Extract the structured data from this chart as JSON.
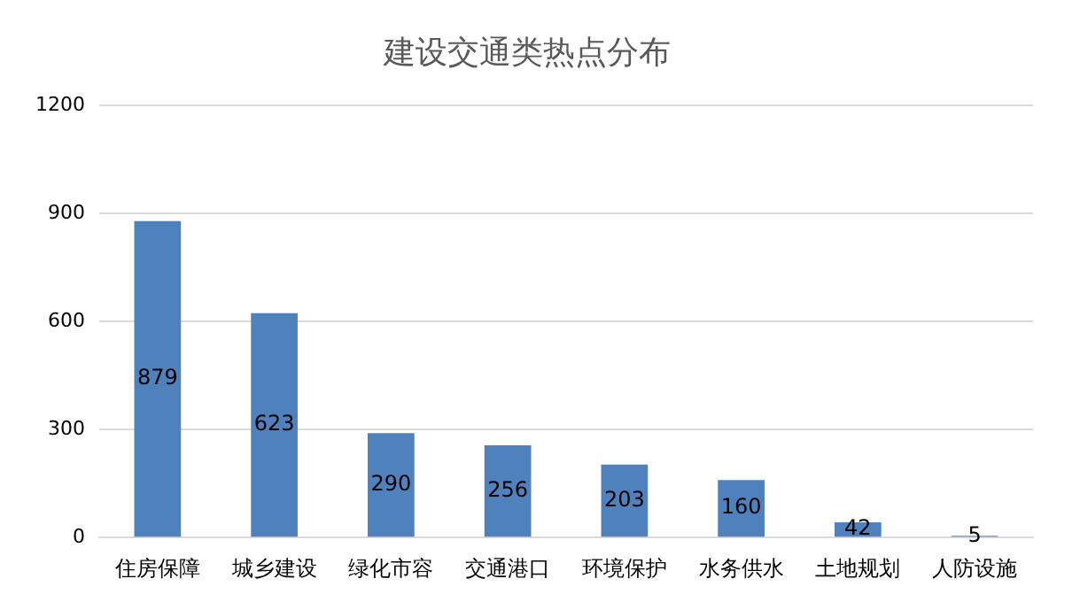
{
  "chart_data": {
    "type": "bar",
    "title": "建设交通类热点分布",
    "categories": [
      "住房保障",
      "城乡建设",
      "绿化市容",
      "交通港口",
      "环境保护",
      "水务供水",
      "土地规划",
      "人防设施"
    ],
    "values": [
      879,
      623,
      290,
      256,
      203,
      160,
      42,
      5
    ],
    "color": "#4f81bd",
    "ylim": [
      0,
      1200
    ],
    "yticks": [
      0,
      300,
      600,
      900,
      1200
    ],
    "grid": "y",
    "legend": false,
    "data_labels": true
  }
}
